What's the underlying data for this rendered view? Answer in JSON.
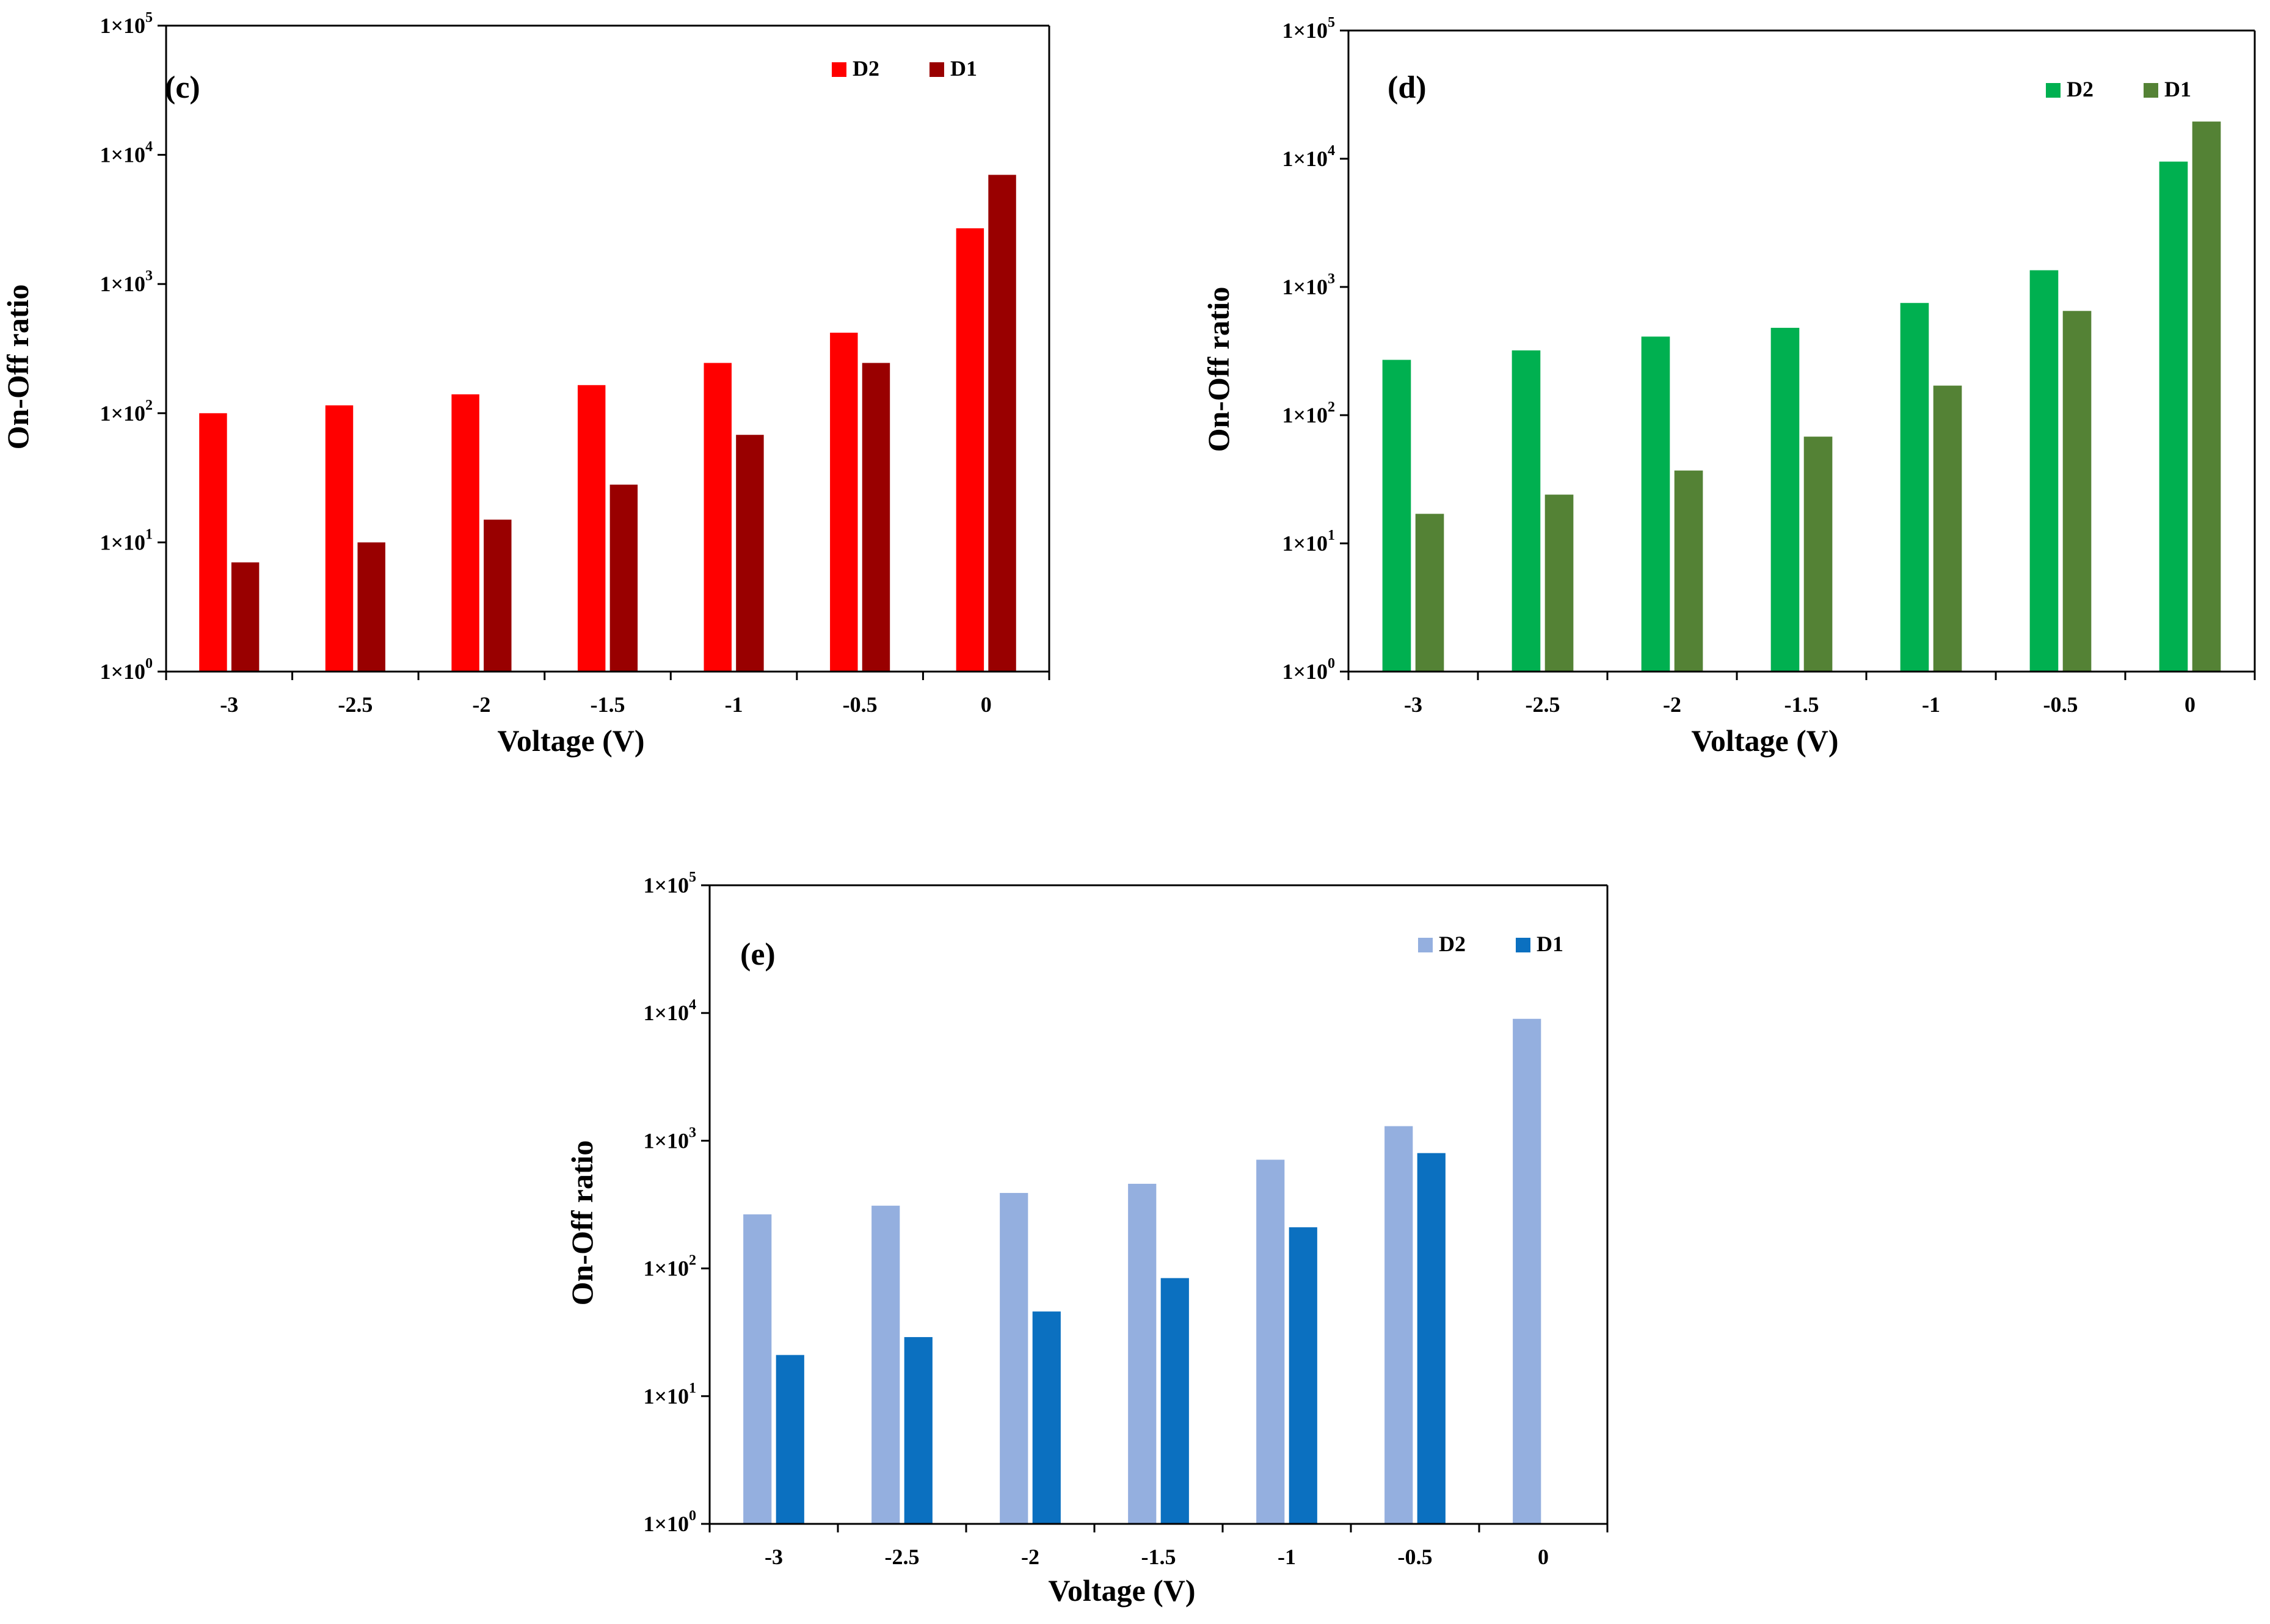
{
  "chart_data": [
    {
      "type": "bar",
      "panel_label": "(c)",
      "xlabel": "Voltage (V)",
      "ylabel": "On-Off ratio",
      "yscale": "log",
      "ylim": [
        1,
        100000
      ],
      "ytick_labels": [
        "1×10",
        "1×10",
        "1×10",
        "1×10",
        "1×10",
        "1×10"
      ],
      "ytick_exponents": [
        "0",
        "1",
        "2",
        "3",
        "4",
        "5"
      ],
      "categories": [
        "-3",
        "-2.5",
        "-2",
        "-1.5",
        "-1",
        "-0.5",
        "0"
      ],
      "legend_position": "top-right",
      "series": [
        {
          "name": "D2",
          "color": "#ff0000",
          "values": [
            100,
            115,
            140,
            165,
            245,
            420,
            2700
          ]
        },
        {
          "name": "D1",
          "color": "#990000",
          "values": [
            7,
            10,
            15,
            28,
            68,
            245,
            7000
          ]
        }
      ]
    },
    {
      "type": "bar",
      "panel_label": "(d)",
      "xlabel": "Voltage (V)",
      "ylabel": "On-Off ratio",
      "yscale": "log",
      "ylim": [
        1,
        100000
      ],
      "ytick_labels": [
        "1×10",
        "1×10",
        "1×10",
        "1×10",
        "1×10",
        "1×10"
      ],
      "ytick_exponents": [
        "0",
        "1",
        "2",
        "3",
        "4",
        "5"
      ],
      "categories": [
        "-3",
        "-2.5",
        "-2",
        "-1.5",
        "-1",
        "-0.5",
        "0"
      ],
      "legend_position": "top-right",
      "series": [
        {
          "name": "D2",
          "color": "#00b050",
          "values": [
            270,
            320,
            410,
            480,
            750,
            1350,
            9500
          ]
        },
        {
          "name": "D1",
          "color": "#548235",
          "values": [
            17,
            24,
            37,
            68,
            170,
            650,
            19500
          ]
        }
      ]
    },
    {
      "type": "bar",
      "panel_label": "(e)",
      "xlabel": "Voltage (V)",
      "ylabel": "On-Off ratio",
      "yscale": "log",
      "ylim": [
        1,
        100000
      ],
      "ytick_labels": [
        "1×10",
        "1×10",
        "1×10",
        "1×10",
        "1×10",
        "1×10"
      ],
      "ytick_exponents": [
        "0",
        "1",
        "2",
        "3",
        "4",
        "5"
      ],
      "categories": [
        "-3",
        "-2.5",
        "-2",
        "-1.5",
        "-1",
        "-0.5",
        "0"
      ],
      "legend_position": "top-right",
      "series": [
        {
          "name": "D2",
          "color": "#94afdf",
          "values": [
            265,
            310,
            390,
            460,
            710,
            1300,
            9000
          ]
        },
        {
          "name": "D1",
          "color": "#0b70c0",
          "values": [
            21,
            29,
            46,
            84,
            210,
            800,
            null
          ]
        }
      ]
    }
  ]
}
